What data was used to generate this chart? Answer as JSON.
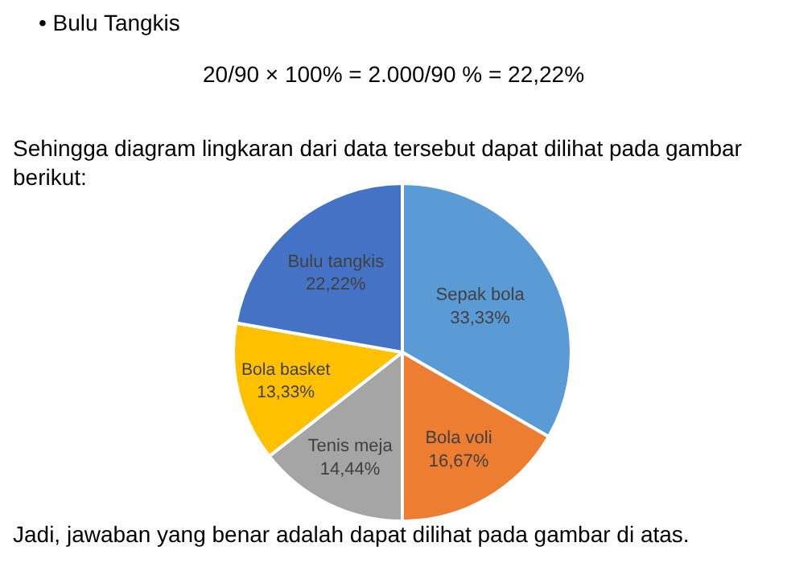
{
  "chart_data": {
    "type": "pie",
    "categories": [
      "Sepak bola",
      "Bola voli",
      "Tenis meja",
      "Bola basket",
      "Bulu tangkis"
    ],
    "values": [
      33.33,
      16.67,
      14.44,
      13.33,
      22.22
    ],
    "colors": [
      "#5b9bd5",
      "#ed7d31",
      "#a5a5a5",
      "#ffc000",
      "#4472c4"
    ],
    "value_labels": [
      "33,33%",
      "16,67%",
      "14,44%",
      "13,33%",
      "22,22%"
    ],
    "legend": false,
    "annotations": [
      "• Bulu Tangkis",
      "20/90 × 100% = 2.000/90 % = 22,22%",
      "Sehingga diagram lingkaran dari data tersebut dapat dilihat pada gambar berikut:",
      "Jadi, jawaban yang benar adalah dapat dilihat pada gambar di atas."
    ]
  }
}
